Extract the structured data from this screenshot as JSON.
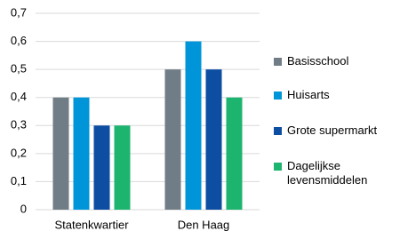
{
  "chart_data": {
    "type": "bar",
    "categories": [
      "Statenkwartier",
      "Den Haag"
    ],
    "series": [
      {
        "name": "Basisschool",
        "color": "#717d86",
        "values": [
          0.4,
          0.5
        ]
      },
      {
        "name": "Huisarts",
        "color": "#0095d9",
        "values": [
          0.4,
          0.6
        ]
      },
      {
        "name": "Grote supermarkt",
        "color": "#0d4ea2",
        "values": [
          0.3,
          0.5
        ]
      },
      {
        "name": "Dagelijkse levensmiddelen",
        "color": "#1db46f",
        "values": [
          0.3,
          0.4
        ]
      }
    ],
    "ylim": [
      0,
      0.7
    ],
    "yticks": [
      0,
      {
        "value": 0.1,
        "label": "0,1"
      },
      {
        "value": 0.2,
        "label": "0,2"
      },
      {
        "value": 0.3,
        "label": "0,3"
      },
      {
        "value": 0.4,
        "label": "0,4"
      },
      {
        "value": 0.5,
        "label": "0,5"
      },
      {
        "value": 0.6,
        "label": "0,6"
      },
      {
        "value": 0.7,
        "label": "0,7"
      }
    ],
    "grid": true,
    "legend": "right"
  }
}
